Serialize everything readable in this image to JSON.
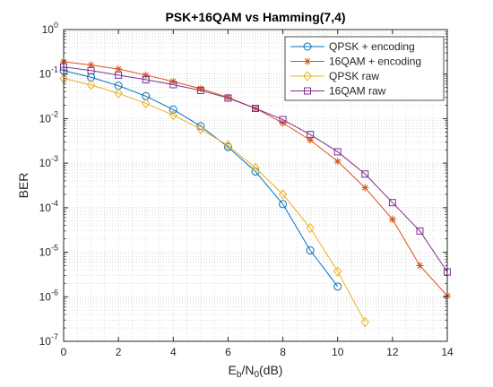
{
  "chart_data": {
    "type": "line",
    "title": "PSK+16QAM vs Hamming(7,4)",
    "xlabel_parts": [
      "E",
      "b",
      "/N",
      "0",
      "(dB)"
    ],
    "ylabel": "BER",
    "xlim": [
      0,
      14
    ],
    "ylim": [
      1e-07,
      1
    ],
    "yscale": "log",
    "x_ticks": [
      0,
      2,
      4,
      6,
      8,
      10,
      12,
      14
    ],
    "x_tick_labels": [
      "0",
      "2",
      "4",
      "6",
      "8",
      "10",
      "12",
      "14"
    ],
    "y_tick_base": "10",
    "y_tick_exponents": [
      "0",
      "-1",
      "-2",
      "-3",
      "-4",
      "-5",
      "-6",
      "-7"
    ],
    "grid": true,
    "minor_grid": true,
    "legend": "top-right",
    "series": [
      {
        "name": "QPSK + encoding",
        "color": "#0072BD",
        "marker": "circle",
        "x": [
          0,
          1,
          2,
          3,
          4,
          5,
          6,
          7,
          8,
          9,
          10
        ],
        "y": [
          0.12,
          0.085,
          0.055,
          0.032,
          0.016,
          0.0068,
          0.0023,
          0.00065,
          0.00012,
          1.1e-05,
          1.7e-06
        ]
      },
      {
        "name": "16QAM + encoding",
        "color": "#D95319",
        "marker": "asterisk",
        "x": [
          0,
          1,
          2,
          3,
          4,
          5,
          6,
          7,
          8,
          9,
          10,
          11,
          12,
          13,
          14
        ],
        "y": [
          0.19,
          0.16,
          0.13,
          0.095,
          0.068,
          0.047,
          0.03,
          0.017,
          0.008,
          0.0033,
          0.0011,
          0.00028,
          5.5e-05,
          5e-06,
          1.05e-06
        ]
      },
      {
        "name": "QPSK raw",
        "color": "#EDB120",
        "marker": "diamond",
        "x": [
          0,
          1,
          2,
          3,
          4,
          5,
          6,
          7,
          8,
          9,
          10,
          11
        ],
        "y": [
          0.08,
          0.057,
          0.037,
          0.022,
          0.012,
          0.0058,
          0.0025,
          0.00078,
          0.0002,
          3.5e-05,
          3.7e-06,
          2.7e-07
        ]
      },
      {
        "name": "16QAM raw",
        "color": "#7E2F8E",
        "marker": "square",
        "x": [
          0,
          1,
          2,
          3,
          4,
          5,
          6,
          7,
          8,
          9,
          10,
          11,
          12,
          13,
          14
        ],
        "y": [
          0.145,
          0.12,
          0.095,
          0.075,
          0.058,
          0.043,
          0.029,
          0.017,
          0.0095,
          0.0044,
          0.0018,
          0.00057,
          0.00013,
          3e-05,
          3.6e-06
        ]
      }
    ]
  }
}
